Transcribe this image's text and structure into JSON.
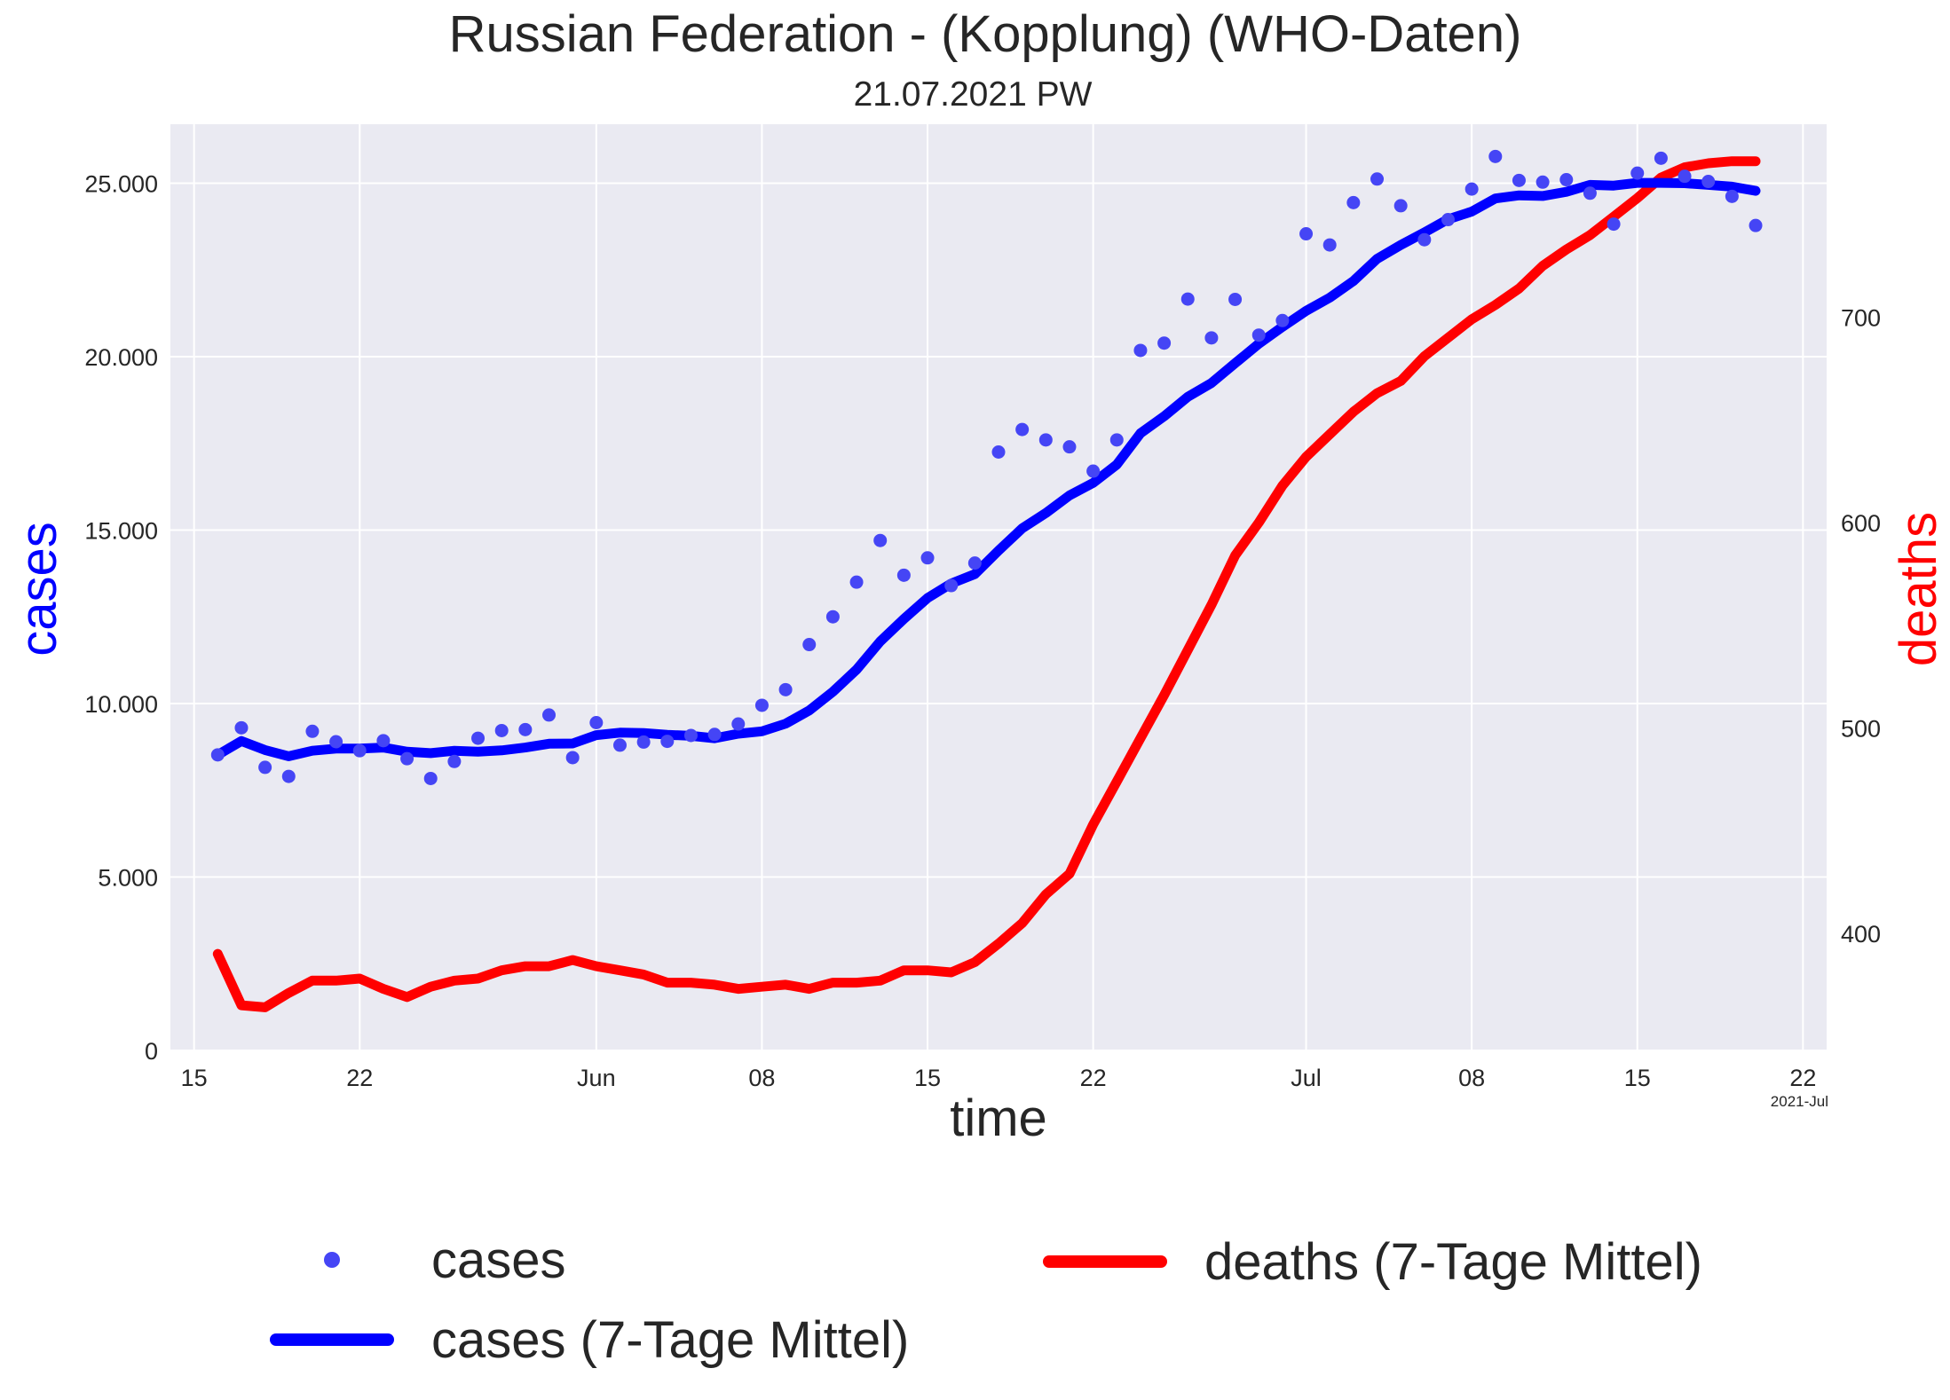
{
  "chart_data": {
    "type": "line",
    "title": "Russian Federation - (Kopplung)  (WHO-Daten)",
    "subtitle": "21.07.2021 PW",
    "xlabel": "time",
    "ylabel_left": "cases",
    "ylabel_right": "deaths",
    "x_offset_label": "2021-Jul",
    "x_range": [
      "2021-05-14",
      "2021-07-23"
    ],
    "ylim_left": [
      0,
      26700
    ],
    "ylim_right": [
      343,
      794
    ],
    "grid": true,
    "legend_position": "bottom",
    "x_ticks": [
      {
        "date": "2021-05-15",
        "label": "15"
      },
      {
        "date": "2021-05-22",
        "label": "22"
      },
      {
        "date": "2021-06-01",
        "label": "Jun"
      },
      {
        "date": "2021-06-08",
        "label": "08"
      },
      {
        "date": "2021-06-15",
        "label": "15"
      },
      {
        "date": "2021-06-22",
        "label": "22"
      },
      {
        "date": "2021-07-01",
        "label": "Jul"
      },
      {
        "date": "2021-07-08",
        "label": "08"
      },
      {
        "date": "2021-07-15",
        "label": "15"
      },
      {
        "date": "2021-07-22",
        "label": "22"
      }
    ],
    "y_ticks_left": [
      {
        "value": 0,
        "label": "0"
      },
      {
        "value": 5000,
        "label": "5.000"
      },
      {
        "value": 10000,
        "label": "10.000"
      },
      {
        "value": 15000,
        "label": "15.000"
      },
      {
        "value": 20000,
        "label": "20.000"
      },
      {
        "value": 25000,
        "label": "25.000"
      }
    ],
    "y_ticks_right": [
      {
        "value": 400,
        "label": "400"
      },
      {
        "value": 500,
        "label": "500"
      },
      {
        "value": 600,
        "label": "600"
      },
      {
        "value": 700,
        "label": "700"
      }
    ],
    "x": [
      "2021-05-16",
      "2021-05-17",
      "2021-05-18",
      "2021-05-19",
      "2021-05-20",
      "2021-05-21",
      "2021-05-22",
      "2021-05-23",
      "2021-05-24",
      "2021-05-25",
      "2021-05-26",
      "2021-05-27",
      "2021-05-28",
      "2021-05-29",
      "2021-05-30",
      "2021-05-31",
      "2021-06-01",
      "2021-06-02",
      "2021-06-03",
      "2021-06-04",
      "2021-06-05",
      "2021-06-06",
      "2021-06-07",
      "2021-06-08",
      "2021-06-09",
      "2021-06-10",
      "2021-06-11",
      "2021-06-12",
      "2021-06-13",
      "2021-06-14",
      "2021-06-15",
      "2021-06-16",
      "2021-06-17",
      "2021-06-18",
      "2021-06-19",
      "2021-06-20",
      "2021-06-21",
      "2021-06-22",
      "2021-06-23",
      "2021-06-24",
      "2021-06-25",
      "2021-06-26",
      "2021-06-27",
      "2021-06-28",
      "2021-06-29",
      "2021-06-30",
      "2021-07-01",
      "2021-07-02",
      "2021-07-03",
      "2021-07-04",
      "2021-07-05",
      "2021-07-06",
      "2021-07-07",
      "2021-07-08",
      "2021-07-09",
      "2021-07-10",
      "2021-07-11",
      "2021-07-12",
      "2021-07-13",
      "2021-07-14",
      "2021-07-15",
      "2021-07-16",
      "2021-07-17",
      "2021-07-18",
      "2021-07-19",
      "2021-07-20"
    ],
    "series": [
      {
        "name": "cases",
        "axis": "left",
        "style": "points",
        "color": "#4545f5",
        "values": [
          8520,
          9300,
          8160,
          7900,
          9200,
          8900,
          8640,
          8930,
          8410,
          7840,
          8330,
          9000,
          9220,
          9250,
          9670,
          8440,
          9450,
          8800,
          8890,
          8910,
          9080,
          9110,
          9410,
          9950,
          10400,
          11700,
          12500,
          13500,
          14700,
          13700,
          14200,
          13400,
          14050,
          17250,
          17900,
          17600,
          17400,
          16700,
          17600,
          20180,
          20390,
          21660,
          20540,
          21650,
          20620,
          21040,
          23540,
          23220,
          24440,
          25120,
          24350,
          23370,
          23950,
          24830,
          25770,
          25080,
          25030,
          25100,
          24710,
          23820,
          25290,
          25720,
          25200,
          25050,
          24620,
          23780
        ]
      },
      {
        "name": "cases (7-Tage Mittel)",
        "axis": "left",
        "style": "line",
        "color": "#0000ff",
        "values": [
          8520,
          8920,
          8660,
          8480,
          8640,
          8700,
          8700,
          8730,
          8610,
          8570,
          8640,
          8610,
          8650,
          8730,
          8840,
          8850,
          9090,
          9160,
          9150,
          9100,
          9070,
          9000,
          9130,
          9200,
          9420,
          9800,
          10340,
          10980,
          11790,
          12440,
          13040,
          13460,
          13730,
          14410,
          15050,
          15490,
          16000,
          16360,
          16890,
          17790,
          18280,
          18840,
          19240,
          19810,
          20370,
          20860,
          21320,
          21700,
          22180,
          22820,
          23220,
          23580,
          23960,
          24180,
          24560,
          24650,
          24630,
          24750,
          24950,
          24930,
          25010,
          25010,
          25000,
          24950,
          24900,
          24780
        ]
      },
      {
        "name": "deaths (7-Tage Mittel)",
        "axis": "right",
        "style": "line",
        "color": "#ff0000",
        "values": [
          390,
          365,
          364,
          371,
          377,
          377,
          378,
          373,
          369,
          374,
          377,
          378,
          382,
          384,
          384,
          387,
          384,
          382,
          380,
          376,
          376,
          375,
          373,
          374,
          375,
          373,
          376,
          376,
          377,
          382,
          382,
          381,
          386,
          395,
          405,
          419,
          429,
          453,
          474,
          495,
          516,
          538,
          560,
          584,
          600,
          618,
          632,
          643,
          654,
          663,
          669,
          681,
          690,
          699,
          706,
          714,
          725,
          733,
          740,
          749,
          758,
          768,
          773,
          775,
          776,
          776
        ]
      }
    ]
  }
}
